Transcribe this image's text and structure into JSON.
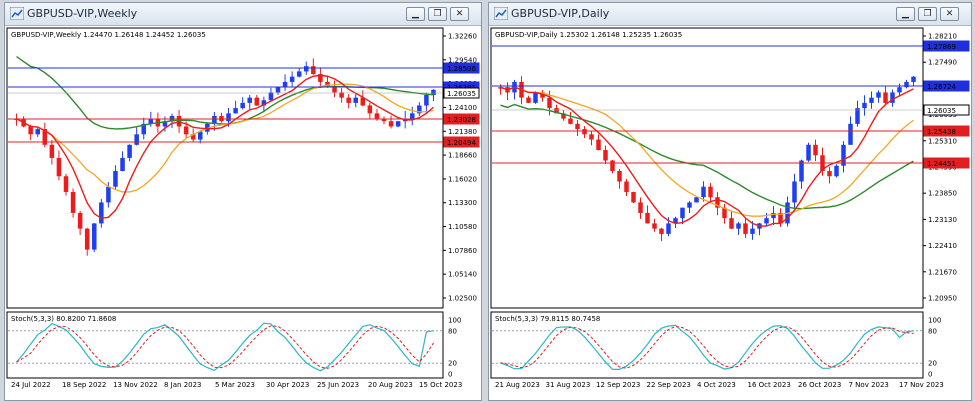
{
  "left_window": {
    "title": "GBPUSD-VIP,Weekly",
    "price_header": "GBPUSD-VIP,Weekly  1.24470 1.26148 1.24452 1.26035",
    "stoch_header": "Stoch(5,3,3) 80.8200 71.8608",
    "price_ticks": [
      "1.32260",
      "1.29540",
      "1.26820",
      "1.24100",
      "1.21380",
      "1.18660",
      "1.16020",
      "1.13300",
      "1.10580",
      "1.07860",
      "1.05140",
      "1.02500"
    ],
    "stoch_ticks": [
      "100",
      "80",
      "20",
      "0"
    ],
    "x_ticks": [
      "24 Jul 2022",
      "18 Sep 2022",
      "13 Nov 2022",
      "8 Jan 2023",
      "5 Mar 2023",
      "30 Apr 2023",
      "25 Jun 2023",
      "20 Aug 2023",
      "15 Oct 2023"
    ],
    "price_labels": [
      {
        "text": "1.28506",
        "kind": "blue"
      },
      {
        "text": "1.26381",
        "kind": "blue"
      },
      {
        "text": "1.26035",
        "kind": "current"
      },
      {
        "text": "1.23028",
        "kind": "red"
      },
      {
        "text": "1.20494",
        "kind": "red"
      }
    ]
  },
  "right_window": {
    "title": "GBPUSD-VIP,Daily",
    "price_header": "GBPUSD-VIP,Daily  1.25302 1.26148 1.25235 1.26035",
    "stoch_header": "Stoch(5,3,3) 79.8115 80.7458",
    "price_ticks": [
      "1.28210",
      "1.27490",
      "1.26724",
      "1.26035",
      "1.25310",
      "1.24590",
      "1.23850",
      "1.23130",
      "1.22410",
      "1.21670",
      "1.20950"
    ],
    "stoch_ticks": [
      "100",
      "80",
      "20",
      "0"
    ],
    "x_ticks": [
      "21 Aug 2023",
      "31 Aug 2023",
      "12 Sep 2023",
      "22 Sep 2023",
      "4 Oct 2023",
      "16 Oct 2023",
      "26 Oct 2023",
      "7 Nov 2023",
      "17 Nov 2023"
    ],
    "price_labels": [
      {
        "text": "1.27869",
        "kind": "blue"
      },
      {
        "text": "1.26724",
        "kind": "blue"
      },
      {
        "text": "1.26035",
        "kind": "current"
      },
      {
        "text": "1.25438",
        "kind": "red"
      },
      {
        "text": "1.24451",
        "kind": "red"
      }
    ]
  },
  "window_buttons": {
    "minimize": "▁",
    "restore": "❐",
    "close": "✕"
  },
  "colors": {
    "bull": "#1f3ff2",
    "bear": "#ee1b1b",
    "ma_fast": "#ee1b1b",
    "ma_mid": "#f5a623",
    "ma_slow": "#2b8a2b",
    "level_blue": "#1f2fe0",
    "level_red": "#e02020",
    "stoch_main": "#28b8c8",
    "stoch_signal": "#e02020",
    "current_label": "#ffffff"
  },
  "icons": {
    "chart": "chart-icon"
  }
}
